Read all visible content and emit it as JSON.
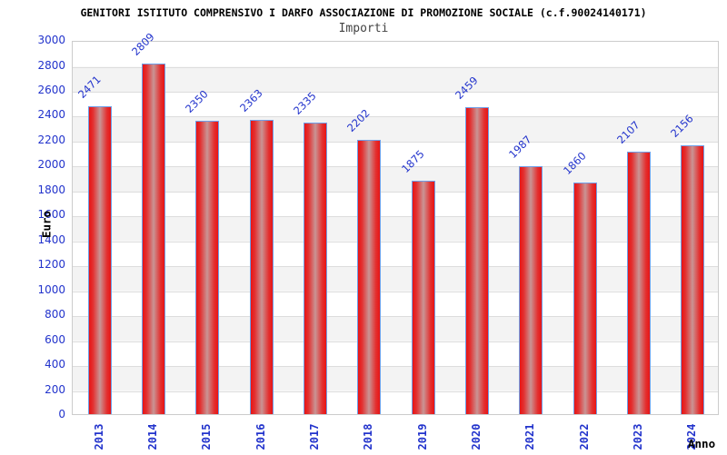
{
  "chart_data": {
    "type": "bar",
    "title": "GENITORI ISTITUTO COMPRENSIVO I DARFO ASSOCIAZIONE DI PROMOZIONE SOCIALE (c.f.90024140171)",
    "subtitle": "Importi",
    "xlabel": "Anno",
    "ylabel": "Euro",
    "categories": [
      "2013",
      "2014",
      "2015",
      "2016",
      "2017",
      "2018",
      "2019",
      "2020",
      "2021",
      "2022",
      "2023",
      "2024"
    ],
    "values": [
      2471,
      2809,
      2350,
      2363,
      2335,
      2202,
      1875,
      2459,
      1987,
      1860,
      2107,
      2156
    ],
    "ylim": [
      0,
      3000
    ],
    "ytick_step": 200,
    "grid": true,
    "legend": "none",
    "colors": {
      "bar_edge_red": "#e81414",
      "bar_mid_highlight": "#c99494",
      "bar_border_blue": "#6f9fe8",
      "label_blue": "#2233cc",
      "gridline": "#dddddd",
      "band_gray": "#f3f3f3",
      "plot_border": "#cccccc",
      "title_color": "#000000",
      "subtitle_color": "#444444"
    }
  }
}
